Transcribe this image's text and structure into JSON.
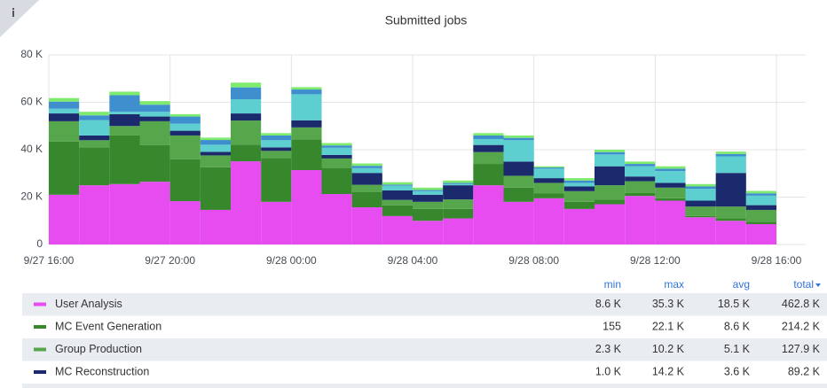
{
  "chart_data": {
    "type": "stacked_bar",
    "title": "Submitted jobs",
    "xticks": [
      "9/27 16:00",
      "9/27 20:00",
      "9/28 00:00",
      "9/28 04:00",
      "9/28 08:00",
      "9/28 12:00",
      "9/28 16:00"
    ],
    "ylim": [
      0,
      80000
    ],
    "yticks": [
      0,
      {
        "value": 20000,
        "label": "20 K"
      },
      {
        "value": 40000,
        "label": "40 K"
      },
      {
        "value": 60000,
        "label": "60 K"
      },
      {
        "value": 80000,
        "label": "80 K"
      }
    ],
    "grid": true,
    "legend_columns": [
      "min",
      "max",
      "avg",
      "total"
    ],
    "series": [
      {
        "name": "User Analysis",
        "color": "#e64cf0",
        "min": "8.6 K",
        "max": "35.3 K",
        "avg": "18.5 K",
        "total": "462.8 K",
        "values": [
          21000,
          25000,
          25500,
          26500,
          18300,
          14600,
          35100,
          18000,
          31400,
          21300,
          15700,
          12000,
          10000,
          11000,
          25000,
          18000,
          19500,
          15000,
          17000,
          20500,
          18500,
          11500,
          10000,
          8600
        ]
      },
      {
        "name": "MC Event Generation",
        "color": "#37872d",
        "min": "155",
        "max": "22.1 K",
        "avg": "8.6 K",
        "total": "214.2 K",
        "values": [
          22400,
          16000,
          20500,
          15500,
          17700,
          18000,
          7000,
          18500,
          13000,
          11000,
          6500,
          4500,
          5000,
          4000,
          9000,
          6000,
          2000,
          3000,
          2000,
          1200,
          1000,
          500,
          1000,
          1000
        ]
      },
      {
        "name": "Group Production",
        "color": "#56a64b",
        "min": "2.3 K",
        "max": "10.2 K",
        "avg": "5.1 K",
        "total": "127.9 K",
        "values": [
          8600,
          3000,
          4000,
          10000,
          10000,
          5000,
          10200,
          3000,
          5000,
          4000,
          3000,
          2300,
          3000,
          4000,
          5000,
          5000,
          4500,
          4500,
          6000,
          5000,
          4500,
          4000,
          5000,
          5000
        ]
      },
      {
        "name": "MC Reconstruction",
        "color": "#1a2a6c",
        "min": "1.0 K",
        "max": "14.2 K",
        "avg": "3.6 K",
        "total": "89.2 K",
        "values": [
          3300,
          2000,
          5000,
          2000,
          2000,
          1500,
          3000,
          1500,
          3000,
          1500,
          5000,
          4000,
          3000,
          6000,
          3000,
          6000,
          2000,
          2000,
          8000,
          2000,
          2000,
          2500,
          14200,
          2000
        ]
      },
      {
        "color": "#5dcfd0",
        "values": [
          2000,
          6500,
          1000,
          2000,
          3000,
          3000,
          6000,
          3000,
          11000,
          3000,
          2000,
          2000,
          1500,
          500,
          2500,
          9000,
          4000,
          1500,
          5000,
          4300,
          5000,
          5000,
          7000,
          4000
        ]
      },
      {
        "color": "#3f8fce",
        "values": [
          3000,
          2000,
          7000,
          3000,
          3000,
          2000,
          5000,
          2000,
          2000,
          1000,
          1000,
          500,
          500,
          500,
          1500,
          1000,
          500,
          1000,
          1000,
          1000,
          1000,
          1000,
          1000,
          1000
        ]
      },
      {
        "color": "#7eea6e",
        "values": [
          1500,
          1500,
          1500,
          1500,
          1000,
          1000,
          2000,
          1000,
          1000,
          1000,
          1000,
          1000,
          1000,
          1000,
          1000,
          1000,
          500,
          1000,
          1000,
          1000,
          1000,
          1000,
          1000,
          1000
        ]
      }
    ]
  }
}
